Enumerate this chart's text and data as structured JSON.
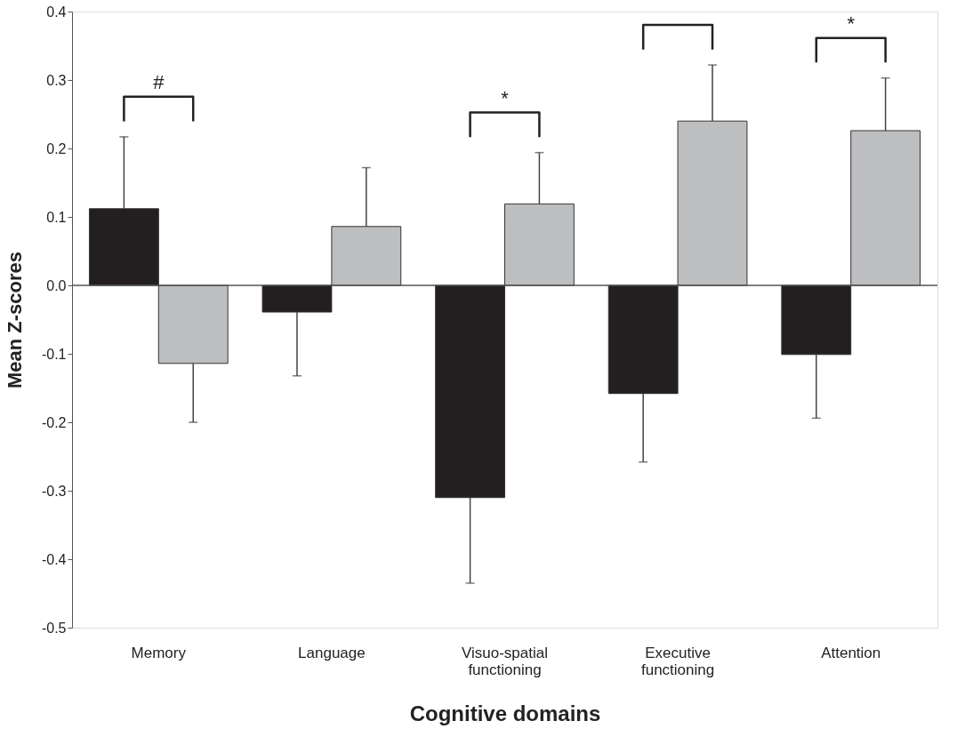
{
  "chart_data": {
    "type": "bar",
    "xlabel": "Cognitive domains",
    "ylabel": "Mean Z-scores",
    "categories": [
      "Memory",
      "Language",
      "Visuo-spatial\nfunctioning",
      "Executive\nfunctioning",
      "Attention"
    ],
    "series": [
      {
        "color": "#231f20",
        "values": [
          0.112,
          -0.039,
          -0.31,
          -0.158,
          -0.101
        ],
        "errors": [
          [
            0.112,
            0.217
          ],
          [
            -0.132,
            -0.039
          ],
          [
            -0.435,
            -0.31
          ],
          [
            -0.258,
            -0.158
          ],
          [
            -0.194,
            -0.101
          ]
        ]
      },
      {
        "color": "#bcbec0",
        "values": [
          -0.114,
          0.086,
          0.119,
          0.24,
          0.226
        ],
        "errors": [
          [
            -0.2,
            -0.114
          ],
          [
            0.086,
            0.172
          ],
          [
            0.119,
            0.194
          ],
          [
            0.24,
            0.322
          ],
          [
            0.226,
            0.303
          ]
        ]
      }
    ],
    "ylim": [
      -0.5,
      0.4
    ],
    "yticks": [
      {
        "value": -0.5,
        "label": "-0.5"
      },
      {
        "value": -0.4,
        "label": "-0.4"
      },
      {
        "value": -0.3,
        "label": "-0.3"
      },
      {
        "value": -0.2,
        "label": "-0.2"
      },
      {
        "value": -0.1,
        "label": "-0.1"
      },
      {
        "value": 0,
        "label": "0.0"
      },
      {
        "value": 0.1,
        "label": "0.1"
      },
      {
        "value": 0.2,
        "label": "0.2"
      },
      {
        "value": 0.3,
        "label": "0.3"
      },
      {
        "value": 0.4,
        "label": "0.4"
      }
    ],
    "ref_lines": [
      {
        "axis": "y",
        "value": 0,
        "color": "#555555"
      }
    ],
    "annotations": [
      "#",
      "*",
      "*"
    ],
    "grid": false
  }
}
